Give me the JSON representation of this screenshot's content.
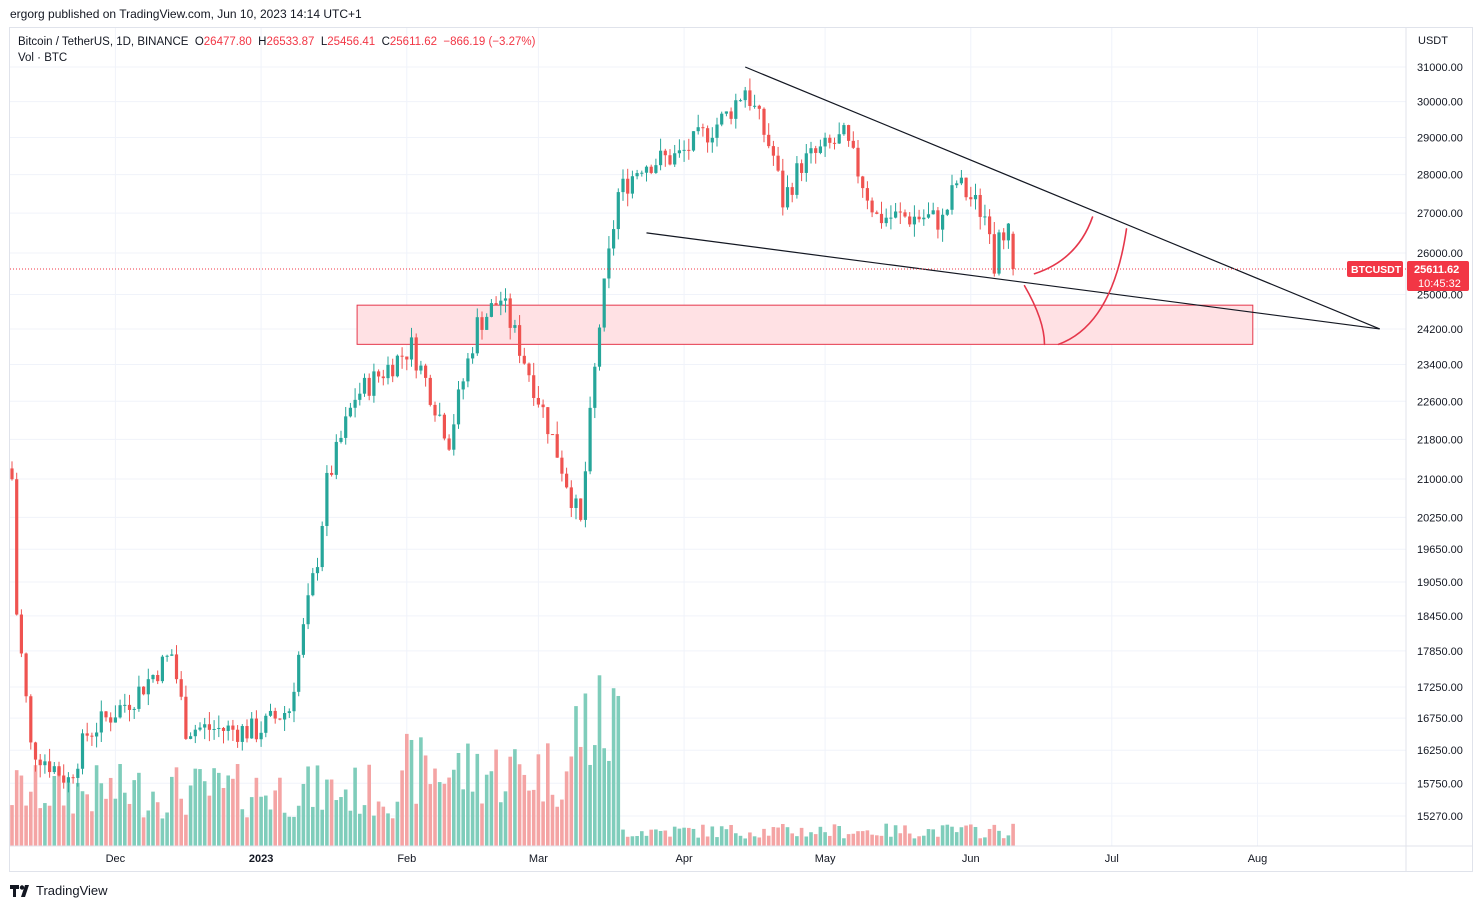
{
  "attribution": "ergorg published on TradingView.com, Jun 10, 2023 14:14 UTC+1",
  "legend": {
    "symbol": "Bitcoin / TetherUS, 1D, BINANCE",
    "o_label": "O",
    "o_value": "26477.80",
    "h_label": "H",
    "h_value": "26533.87",
    "l_label": "L",
    "l_value": "25456.41",
    "c_label": "C",
    "c_value": "25611.62",
    "change": "−866.19 (−3.27%)",
    "volume_label": "Vol · BTC"
  },
  "currency": "USDT",
  "last_price": {
    "symbol": "BTCUSDT",
    "price": "25611.62",
    "countdown": "10:45:32",
    "color": "#f23645"
  },
  "footer": {
    "brand": "TradingView"
  },
  "colors": {
    "up": "#26a69a",
    "down": "#ef5350",
    "up_vol": "#7fcdbb",
    "down_vol": "#f4a4a4",
    "zone_fill": "#ffe1e4",
    "zone_stroke": "#e5374b",
    "drawing": "#e5374b",
    "trendline": "#131722"
  },
  "chart_data": {
    "type": "candlestick",
    "symbol": "BTCUSDT",
    "interval": "1D",
    "y_axis_ticks": [
      31000,
      30000,
      29000,
      28000,
      27000,
      26000,
      25000,
      24200,
      23400,
      22600,
      21800,
      21000,
      20250,
      19650,
      19050,
      18450,
      17850,
      17250,
      16750,
      16250,
      15750,
      15270
    ],
    "y_axis_tick_labels": [
      "31000.00",
      "30000.00",
      "29000.00",
      "28000.00",
      "27000.00",
      "26000.00",
      "25000.00",
      "24200.00",
      "23400.00",
      "22600.00",
      "21800.00",
      "21000.00",
      "20250.00",
      "19650.00",
      "19050.00",
      "18450.00",
      "17850.00",
      "17250.00",
      "16750.00",
      "16250.00",
      "15750.00",
      "15270.00"
    ],
    "y_scale": "log",
    "x_axis_labels": [
      "Dec",
      "2023",
      "Feb",
      "Mar",
      "Apr",
      "May",
      "Jun",
      "Jul",
      "Aug"
    ],
    "x_axis_dates": [
      "2022-12-01",
      "2023-01-01",
      "2023-02-01",
      "2023-03-01",
      "2023-04-01",
      "2023-05-01",
      "2023-06-01",
      "2023-07-01",
      "2023-08-01"
    ],
    "grid": true,
    "last_close": 25611.62,
    "close_anchors": [
      [
        "2022-11-09",
        21000
      ],
      [
        "2022-11-10",
        18500
      ],
      [
        "2022-11-13",
        16300
      ],
      [
        "2022-11-21",
        15800
      ],
      [
        "2022-11-25",
        16500
      ],
      [
        "2022-12-05",
        17100
      ],
      [
        "2022-12-13",
        17800
      ],
      [
        "2022-12-16",
        16600
      ],
      [
        "2022-12-31",
        16550
      ],
      [
        "2023-01-07",
        16900
      ],
      [
        "2023-01-13",
        19500
      ],
      [
        "2023-01-15",
        20900
      ],
      [
        "2023-01-21",
        22700
      ],
      [
        "2023-02-02",
        23800
      ],
      [
        "2023-02-10",
        21800
      ],
      [
        "2023-02-16",
        24300
      ],
      [
        "2023-02-21",
        24900
      ],
      [
        "2023-03-02",
        22400
      ],
      [
        "2023-03-10",
        20100
      ],
      [
        "2023-03-14",
        24300
      ],
      [
        "2023-03-18",
        27500
      ],
      [
        "2023-03-23",
        28300
      ],
      [
        "2023-03-31",
        28500
      ],
      [
        "2023-04-10",
        29600
      ],
      [
        "2023-04-14",
        30400
      ],
      [
        "2023-04-20",
        28500
      ],
      [
        "2023-04-22",
        27300
      ],
      [
        "2023-04-26",
        28300
      ],
      [
        "2023-05-05",
        29000
      ],
      [
        "2023-05-12",
        26900
      ],
      [
        "2023-05-22",
        26900
      ],
      [
        "2023-05-26",
        26800
      ],
      [
        "2023-05-29",
        27800
      ],
      [
        "2023-06-05",
        26800
      ],
      [
        "2023-06-06",
        25700
      ],
      [
        "2023-06-07",
        26800
      ],
      [
        "2023-06-09",
        26478
      ],
      [
        "2023-06-10",
        25612
      ]
    ],
    "volume_profile_note_omitted": true,
    "drawings": {
      "falling_wedge_upper": [
        [
          "2023-04-14",
          31000
        ],
        [
          "2023-08-27",
          24200
        ]
      ],
      "falling_wedge_lower": [
        [
          "2023-03-24",
          26500
        ],
        [
          "2023-08-27",
          24200
        ]
      ],
      "support_zone": {
        "from": "2023-01-21",
        "to": "2023-07-31",
        "top": 24750,
        "bottom": 23850
      }
    }
  }
}
